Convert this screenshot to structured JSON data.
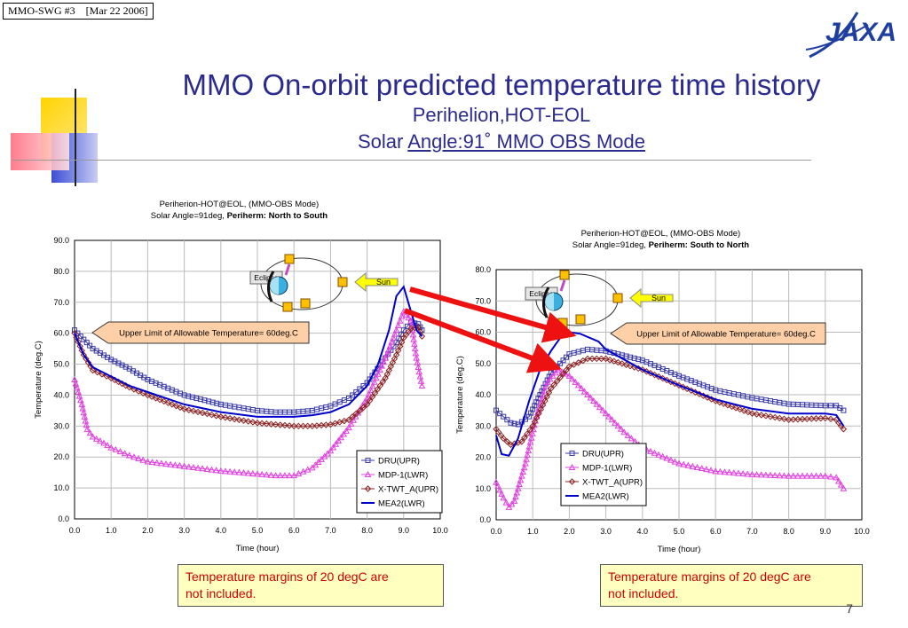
{
  "header": {
    "label": "MMO-SWG #3    [Mar 22 2006]"
  },
  "logo": {
    "text": "JAXA",
    "color": "#1f3fa0"
  },
  "title": "MMO On-orbit predicted temperature time history",
  "subtitle1": "Perihelion,HOT-EOL",
  "subtitle2_prefix": "Solar ",
  "subtitle2_underlined": "Angle:91˚  MMO OBS Mode",
  "colors": {
    "title": "#2b2b8f",
    "DRU": "#3a3aa8",
    "MDP": "#e040e0",
    "XTWT": "#8b2020",
    "MEA2": "#0000cc",
    "arrow": "#ee1111",
    "note_bg": "#ffffc0",
    "note_text": "#cc0000"
  },
  "notes": [
    {
      "line1": "Temperature margins of 20 degC are",
      "line2": "not included."
    },
    {
      "line1": "Temperature margins of 20 degC are",
      "line2": "not included."
    }
  ],
  "page_number": "7",
  "chart_data": [
    {
      "type": "line",
      "title_line1": "Periherion-HOT@EOL, (MMO-OBS Mode)",
      "title_line2_plain": "Solar Angle=91deg, ",
      "title_line2_bold": "Periherm: North to South",
      "xlabel": "Time (hour)",
      "ylabel": "Temperature (deg.C)",
      "xlim": [
        0,
        10
      ],
      "ylim": [
        0,
        90
      ],
      "xticks": [
        "0.0",
        "1.0",
        "2.0",
        "3.0",
        "4.0",
        "5.0",
        "6.0",
        "7.0",
        "8.0",
        "9.0",
        "10.0"
      ],
      "yticks": [
        "0.0",
        "10.0",
        "20.0",
        "30.0",
        "40.0",
        "50.0",
        "60.0",
        "70.0",
        "80.0",
        "90.0"
      ],
      "legend": "bottom-right",
      "callout": "Upper Limit of Allowable Temperature= 60deg.C",
      "diagram": {
        "eclipse": "Eclipse",
        "sun": "Sun"
      },
      "series": [
        {
          "name": "DRU(UPR)",
          "marker": "square",
          "x": [
            0,
            0.25,
            0.5,
            1,
            1.5,
            2,
            3,
            4,
            5,
            5.5,
            6,
            6.5,
            7,
            7.5,
            8,
            8.5,
            8.8,
            9,
            9.2,
            9.4,
            9.5
          ],
          "y": [
            61,
            58,
            55,
            51.5,
            48.5,
            45,
            40,
            37,
            35,
            34.5,
            34.5,
            35,
            36.5,
            39,
            44,
            52,
            57,
            61,
            63.5,
            63,
            61
          ]
        },
        {
          "name": "MDP-1(LWR)",
          "marker": "triangle",
          "x": [
            0,
            0.2,
            0.35,
            0.5,
            0.8,
            1,
            1.5,
            2,
            3,
            4,
            5,
            5.5,
            6,
            6.5,
            7,
            7.5,
            8,
            8.5,
            8.8,
            9,
            9.2,
            9.35,
            9.5
          ],
          "y": [
            45,
            37,
            29,
            26.5,
            24.5,
            23,
            20.5,
            18.5,
            17,
            15.5,
            14.5,
            14,
            14,
            16.5,
            22,
            29.5,
            39,
            52,
            61,
            67,
            64,
            52,
            43
          ]
        },
        {
          "name": "X-TWT_A(UPR)",
          "marker": "diamond",
          "x": [
            0,
            0.25,
            0.5,
            1,
            1.5,
            2,
            3,
            4,
            5,
            6,
            6.5,
            7,
            7.5,
            8,
            8.5,
            8.8,
            9,
            9.2,
            9.4,
            9.5
          ],
          "y": [
            60,
            53,
            48,
            45.5,
            42.5,
            40,
            35.5,
            33,
            31,
            30,
            30,
            30.5,
            32,
            37,
            45.5,
            53,
            58.5,
            61.5,
            62,
            59
          ]
        },
        {
          "name": "MEA2(LWR)",
          "marker": "none",
          "x": [
            0,
            0.25,
            0.5,
            1,
            1.5,
            2,
            3,
            4,
            5,
            6,
            6.5,
            7,
            7.5,
            8,
            8.3,
            8.6,
            8.8,
            9,
            9.2,
            9.35,
            9.5
          ],
          "y": [
            60,
            53,
            49,
            46,
            43,
            41,
            37,
            34.5,
            33,
            33,
            33.5,
            34.5,
            37,
            43,
            50,
            61,
            72,
            75,
            67,
            61,
            59
          ]
        }
      ]
    },
    {
      "type": "line",
      "title_line1": "Periherion-HOT@EOL, (MMO-OBS Mode)",
      "title_line2_plain": "Solar Angle=91deg, ",
      "title_line2_bold": "Periherm: South to North",
      "xlabel": "Time (hour)",
      "ylabel": "Temperature (deg.C)",
      "xlim": [
        0,
        10
      ],
      "ylim": [
        0,
        80
      ],
      "xticks": [
        "0.0",
        "1.0",
        "2.0",
        "3.0",
        "4.0",
        "5.0",
        "6.0",
        "7.0",
        "8.0",
        "9.0",
        "10.0"
      ],
      "yticks": [
        "0.0",
        "10.0",
        "20.0",
        "30.0",
        "40.0",
        "50.0",
        "60.0",
        "70.0",
        "80.0"
      ],
      "legend": "bottom-left",
      "callout": "Upper Limit of Allowable Temperature= 60deg.C",
      "diagram": {
        "eclipse": "Eclipse",
        "sun": "Sun"
      },
      "series": [
        {
          "name": "DRU(UPR)",
          "marker": "square",
          "x": [
            0,
            0.2,
            0.4,
            0.6,
            0.9,
            1.2,
            1.5,
            2,
            2.5,
            3,
            4,
            5,
            6,
            7,
            8,
            9,
            9.3,
            9.5
          ],
          "y": [
            35,
            33,
            31,
            30.5,
            33,
            40,
            47,
            53,
            54.5,
            54,
            51,
            46,
            41.5,
            39,
            37,
            36.5,
            36.5,
            35
          ]
        },
        {
          "name": "MDP-1(LWR)",
          "marker": "triangle",
          "x": [
            0,
            0.2,
            0.35,
            0.5,
            0.8,
            1.1,
            1.4,
            1.7,
            2,
            2.5,
            3,
            3.5,
            4,
            5,
            6,
            7,
            8,
            9,
            9.3,
            9.5
          ],
          "y": [
            12,
            7,
            4,
            6,
            18,
            33,
            44,
            48,
            46,
            40,
            34,
            28,
            23,
            18,
            15.5,
            14.5,
            14,
            14,
            13.5,
            10
          ]
        },
        {
          "name": "X-TWT_A(UPR)",
          "marker": "diamond",
          "x": [
            0,
            0.2,
            0.4,
            0.7,
            1,
            1.5,
            2,
            2.5,
            3,
            4,
            5,
            6,
            7,
            8,
            9,
            9.3,
            9.5
          ],
          "y": [
            29,
            26,
            24,
            25,
            30,
            42,
            49,
            51.5,
            51.5,
            48,
            43,
            38,
            34,
            32,
            32.5,
            32,
            29
          ]
        },
        {
          "name": "MEA2(LWR)",
          "marker": "none",
          "x": [
            0,
            0.15,
            0.35,
            0.6,
            0.9,
            1.2,
            1.5,
            1.8,
            2,
            2.3,
            2.8,
            3,
            4,
            5,
            6,
            7,
            8,
            9,
            9.3,
            9.5
          ],
          "y": [
            27,
            21,
            20.5,
            26,
            38,
            48,
            54,
            59,
            60,
            59.5,
            57,
            54.5,
            48,
            43,
            38.5,
            35.5,
            34,
            34,
            33.5,
            30
          ]
        }
      ]
    }
  ]
}
